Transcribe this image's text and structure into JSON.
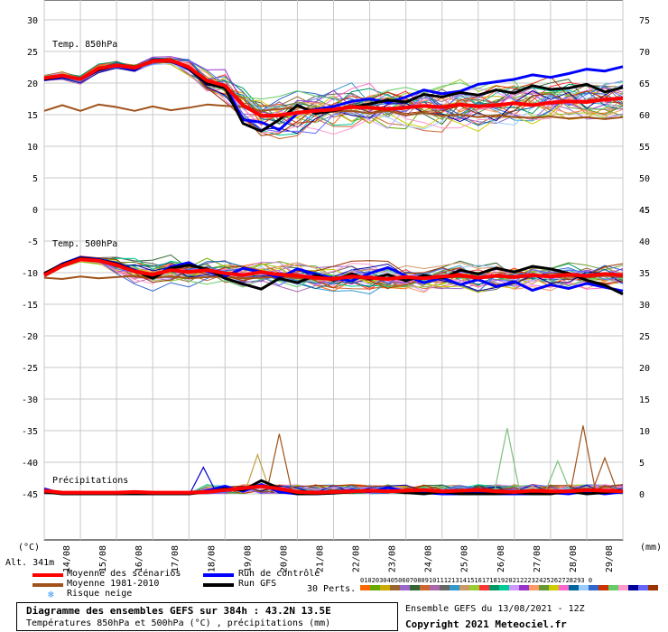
{
  "chart_data": [
    {
      "type": "line",
      "title": "Temp. 850hPa",
      "ylabel": "(°C)",
      "ylim": [
        0,
        30
      ],
      "yticks": [
        0,
        5,
        10,
        15,
        20,
        25,
        30
      ],
      "right_ylim": [
        45,
        75
      ],
      "right_yticks": [
        45,
        50,
        55,
        60,
        65,
        70,
        75
      ],
      "x_unit": "day",
      "x": [
        0,
        0.5,
        1,
        1.5,
        2,
        2.5,
        3,
        3.5,
        4,
        4.5,
        5,
        5.5,
        6,
        6.5,
        7,
        7.5,
        8,
        8.5,
        9,
        9.5,
        10,
        10.5,
        11,
        11.5,
        12,
        12.5,
        13,
        13.5,
        14,
        14.5,
        15,
        15.5,
        16
      ],
      "series": [
        {
          "name": "Moyenne des scénarios",
          "color": "#ff0000",
          "width": 4,
          "values": [
            20.8,
            21.2,
            20.6,
            22.3,
            22.8,
            22.4,
            23.5,
            23.6,
            22.5,
            20.4,
            19.6,
            16.5,
            14.8,
            14.9,
            15.3,
            15.6,
            15.8,
            16.2,
            16.1,
            15.9,
            16.1,
            16.4,
            16.2,
            16.6,
            16.3,
            16.5,
            16.8,
            16.5,
            16.9,
            17.1,
            17.0,
            17.4,
            17.6
          ]
        },
        {
          "name": "Moyenne 1981-2010",
          "color": "#a0521a",
          "width": 2,
          "values": [
            15.6,
            16.5,
            15.6,
            16.6,
            16.2,
            15.6,
            16.3,
            15.7,
            16.1,
            16.6,
            16.4,
            16.2,
            15.6,
            15.9,
            16.1,
            15.9,
            15.5,
            15.6,
            15.2,
            15.6,
            14.9,
            15.3,
            14.8,
            15.0,
            14.6,
            14.9,
            14.6,
            14.5,
            14.7,
            14.4,
            14.6,
            14.3,
            14.6
          ]
        },
        {
          "name": "Run de contrôle",
          "color": "#0000ff",
          "width": 3,
          "values": [
            20.5,
            21.0,
            20.6,
            22.0,
            22.7,
            22.1,
            23.7,
            23.5,
            22.2,
            19.8,
            19.5,
            14.2,
            13.8,
            12.6,
            15.2,
            15.8,
            16.3,
            17.1,
            17.5,
            16.9,
            17.8,
            18.9,
            18.3,
            18.7,
            19.8,
            20.2,
            20.6,
            21.3,
            20.9,
            21.5,
            22.2,
            21.9,
            22.6
          ]
        },
        {
          "name": "Run GFS",
          "color": "#000000",
          "width": 3,
          "values": [
            20.6,
            21.1,
            20.7,
            22.1,
            22.8,
            22.3,
            23.6,
            23.7,
            22.3,
            19.9,
            19.2,
            13.6,
            12.4,
            14.2,
            16.5,
            15.2,
            15.6,
            16.2,
            16.7,
            17.3,
            17.0,
            18.2,
            17.8,
            18.5,
            18.1,
            18.9,
            18.4,
            19.6,
            19.0,
            19.2,
            19.8,
            18.6,
            19.3
          ]
        }
      ]
    },
    {
      "type": "line",
      "title": "Temp. 500hPa",
      "ylim": [
        -45,
        0
      ],
      "yticks": [
        -45,
        -40,
        -35,
        -30,
        -25,
        -20,
        -15,
        -10,
        -5,
        0
      ],
      "right_ylim": [
        0,
        45
      ],
      "right_yticks": [
        0,
        5,
        10,
        15,
        20,
        25,
        30,
        35,
        40,
        45
      ],
      "x": [
        0,
        0.5,
        1,
        1.5,
        2,
        2.5,
        3,
        3.5,
        4,
        4.5,
        5,
        5.5,
        6,
        6.5,
        7,
        7.5,
        8,
        8.5,
        9,
        9.5,
        10,
        10.5,
        11,
        11.5,
        12,
        12.5,
        13,
        13.5,
        14,
        14.5,
        15,
        15.5,
        16
      ],
      "series": [
        {
          "name": "Moyenne des scénarios",
          "color": "#ff0000",
          "width": 4,
          "values": [
            -10.4,
            -8.9,
            -7.9,
            -8.1,
            -8.8,
            -9.8,
            -10.3,
            -9.6,
            -9.9,
            -9.6,
            -10.1,
            -10.4,
            -9.9,
            -10.3,
            -10.5,
            -10.8,
            -11.0,
            -10.6,
            -10.8,
            -11.0,
            -10.7,
            -10.9,
            -10.6,
            -10.4,
            -10.8,
            -10.5,
            -10.7,
            -10.4,
            -10.6,
            -10.3,
            -10.5,
            -10.2,
            -10.4
          ]
        },
        {
          "name": "Moyenne 1981-2010",
          "color": "#a0521a",
          "width": 2,
          "values": [
            -10.8,
            -11.0,
            -10.6,
            -10.9,
            -10.7,
            -10.5,
            -10.8,
            -10.6,
            -10.9,
            -10.7,
            -10.6,
            -10.9,
            -10.8,
            -10.6,
            -10.9,
            -11.0,
            -10.7,
            -10.9,
            -10.6,
            -10.8,
            -10.9,
            -10.6,
            -10.8,
            -10.7,
            -10.9,
            -10.6,
            -10.8,
            -10.5,
            -10.7,
            -10.6,
            -10.8,
            -10.5,
            -10.7
          ]
        },
        {
          "name": "Run de contrôle",
          "color": "#0000ff",
          "width": 3,
          "values": [
            -10.2,
            -8.6,
            -7.6,
            -7.9,
            -8.5,
            -9.6,
            -10.7,
            -9.1,
            -8.4,
            -9.8,
            -10.6,
            -9.3,
            -9.9,
            -10.8,
            -9.4,
            -10.2,
            -10.9,
            -11.3,
            -10.1,
            -9.2,
            -10.5,
            -11.6,
            -10.8,
            -11.9,
            -11.1,
            -12.2,
            -11.4,
            -12.8,
            -11.9,
            -12.5,
            -11.7,
            -12.3,
            -12.9
          ]
        },
        {
          "name": "Run GFS",
          "color": "#000000",
          "width": 3,
          "values": [
            -10.1,
            -8.7,
            -7.7,
            -8.0,
            -8.6,
            -9.7,
            -10.9,
            -9.3,
            -8.8,
            -9.4,
            -10.9,
            -11.8,
            -12.6,
            -10.9,
            -11.6,
            -10.4,
            -11.2,
            -10.2,
            -11.0,
            -10.3,
            -11.3,
            -10.4,
            -10.9,
            -9.6,
            -10.2,
            -9.3,
            -9.9,
            -9.0,
            -9.4,
            -10.1,
            -11.2,
            -12.0,
            -13.4
          ]
        }
      ]
    },
    {
      "type": "line",
      "title": "Précipitations",
      "ylabel": "(mm)",
      "ylim": [
        0,
        45
      ],
      "yticks": [
        0,
        5,
        10
      ],
      "x": [
        0,
        0.5,
        1,
        1.5,
        2,
        2.5,
        3,
        3.5,
        4,
        4.5,
        5,
        5.5,
        6,
        6.5,
        7,
        7.5,
        8,
        8.5,
        9,
        9.5,
        10,
        10.5,
        11,
        11.5,
        12,
        12.5,
        13,
        13.5,
        14,
        14.5,
        15,
        15.5,
        16
      ],
      "series": [
        {
          "name": "Moyenne des scénarios",
          "color": "#ff0000",
          "width": 4,
          "values": [
            0.5,
            0.2,
            0.2,
            0.2,
            0.2,
            0.3,
            0.2,
            0.2,
            0.2,
            0.3,
            0.6,
            0.9,
            1.2,
            0.8,
            0.3,
            0.2,
            0.3,
            0.4,
            0.5,
            0.4,
            0.5,
            0.6,
            0.4,
            0.5,
            0.6,
            0.4,
            0.3,
            0.5,
            0.4,
            0.4,
            0.6,
            0.5,
            0.4
          ]
        },
        {
          "name": "Run de contrôle",
          "color": "#0000ff",
          "width": 3,
          "values": [
            0.8,
            0,
            0,
            0,
            0,
            0,
            0,
            0,
            0,
            0.5,
            1.2,
            0.4,
            1.5,
            0.3,
            0,
            0,
            0.2,
            0.6,
            0.3,
            1.0,
            0.4,
            0.2,
            0,
            0,
            0.3,
            0,
            0,
            0,
            0.2,
            0,
            0.4,
            0,
            0.3
          ]
        },
        {
          "name": "Run GFS",
          "color": "#000000",
          "width": 3,
          "values": [
            0.3,
            0,
            0,
            0,
            0,
            0,
            0,
            0,
            0,
            0.3,
            0.8,
            0.6,
            2.1,
            0.9,
            0,
            0,
            0.1,
            0.3,
            0.5,
            0.4,
            0.2,
            0,
            0.3,
            0,
            0,
            0,
            0.2,
            0,
            0,
            0.4,
            0,
            0.2,
            0.5
          ]
        }
      ],
      "peaks": [
        {
          "x": 6.5,
          "value": 9.5,
          "color": "#a0521a"
        },
        {
          "x": 12.8,
          "value": 10.4,
          "color": "#7fbf7f"
        },
        {
          "x": 14.9,
          "value": 10.8,
          "color": "#a0521a"
        },
        {
          "x": 5.9,
          "value": 6.2,
          "color": "#c0a040"
        },
        {
          "x": 4.4,
          "value": 4.2,
          "color": "#0000cc"
        },
        {
          "x": 15.5,
          "value": 5.7,
          "color": "#a0521a"
        },
        {
          "x": 14.2,
          "value": 5.2,
          "color": "#7fbf7f"
        }
      ]
    }
  ],
  "x_tick_labels": [
    "14/08",
    "15/08",
    "16/08",
    "17/08",
    "18/08",
    "19/08",
    "20/08",
    "21/08",
    "22/08",
    "23/08",
    "24/08",
    "25/08",
    "26/08",
    "27/08",
    "28/08",
    "29/08"
  ],
  "axis_units": {
    "left": "(°C)",
    "right": "(mm)"
  },
  "altitude": "Alt. 341m",
  "legend": {
    "mean_scenarios": {
      "label": "Moyenne des scénarios",
      "color": "#ff0000"
    },
    "climatology": {
      "label": "Moyenne 1981-2010",
      "color": "#a0521a"
    },
    "control_run": {
      "label": "Run de contrôle",
      "color": "#0000ff"
    },
    "gfs_run": {
      "label": "Run GFS",
      "color": "#000000"
    },
    "snow_risk": {
      "label": "Risque neige",
      "icon": "snowflake-icon",
      "color": "#3399ff"
    },
    "perturbations_label": "30 Perts.",
    "perturbation_numbers": "01020304050607080910111213141516171819202122232425262728293 0",
    "perturbation_colors": [
      "#ff6600",
      "#66aa00",
      "#ccaa00",
      "#996633",
      "#9966cc",
      "#336633",
      "#cc6633",
      "#aa66aa",
      "#666666",
      "#3399cc",
      "#cc9966",
      "#99cc33",
      "#ff3333",
      "#009966",
      "#00cc99",
      "#cc99ff",
      "#9933cc",
      "#ff9966",
      "#669933",
      "#cccc00",
      "#ff66cc",
      "#006699",
      "#99ccff",
      "#3366cc",
      "#cc3300",
      "#66cc66",
      "#ff99cc",
      "#000099",
      "#6666ff",
      "#993300"
    ]
  },
  "footer": {
    "title": "Diagramme des ensembles GEFS sur 384h : 43.2N 13.5E",
    "subtitle": "Températures 850hPa et 500hPa (°C) , précipitations (mm)",
    "run_info": "Ensemble GEFS du 13/08/2021 - 12Z",
    "copyright": "Copyright 2021 Meteociel.fr"
  }
}
